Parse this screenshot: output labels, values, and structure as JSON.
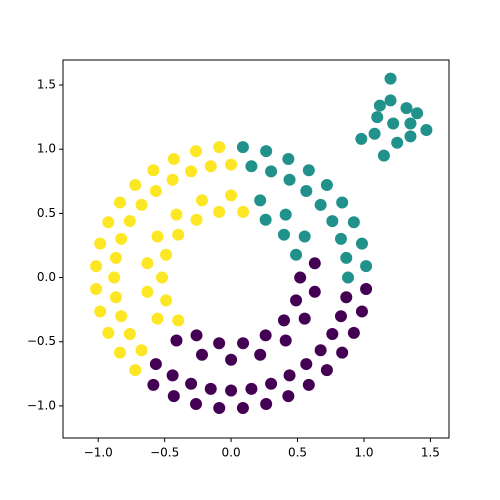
{
  "chart_data": {
    "type": "scatter",
    "xlim": [
      -1.265,
      1.64
    ],
    "ylim": [
      -1.25,
      1.695
    ],
    "xticks": [
      {
        "value": -1.0,
        "label": "−1.0"
      },
      {
        "value": -0.5,
        "label": "−0.5"
      },
      {
        "value": 0.0,
        "label": "0.0"
      },
      {
        "value": 0.5,
        "label": "0.5"
      },
      {
        "value": 1.0,
        "label": "1.0"
      },
      {
        "value": 1.5,
        "label": "1.5"
      }
    ],
    "yticks": [
      {
        "value": -1.0,
        "label": "−1.0"
      },
      {
        "value": -0.5,
        "label": "−0.5"
      },
      {
        "value": 0.0,
        "label": "0.0"
      },
      {
        "value": 0.5,
        "label": "0.5"
      },
      {
        "value": 1.0,
        "label": "1.0"
      },
      {
        "value": 1.5,
        "label": "1.5"
      }
    ],
    "grid": false,
    "series": [
      {
        "color": "#440154",
        "x": [
          -0.566,
          -0.44,
          -0.301,
          -0.153,
          0,
          0.153,
          0.301,
          0.44,
          0.566,
          0.674,
          0.762,
          0.827,
          0.867,
          -0.585,
          -0.431,
          -0.264,
          -0.089,
          0.089,
          0.264,
          0.431,
          0.585,
          0.721,
          0.836,
          0.924,
          0.985,
          1.016,
          -0.26,
          -0.09,
          0.09,
          0.26,
          0.398,
          0.489,
          0.52,
          -0.411,
          -0.219,
          0,
          0.219,
          0.411,
          0.554,
          0.63,
          0.63
        ],
        "values": [
          -0.674,
          -0.762,
          -0.827,
          -0.867,
          -0.88,
          -0.867,
          -0.827,
          -0.762,
          -0.674,
          -0.566,
          -0.44,
          -0.301,
          -0.153,
          -0.836,
          -0.924,
          -0.985,
          -1.016,
          -1.016,
          -0.985,
          -0.924,
          -0.836,
          -0.721,
          -0.585,
          -0.431,
          -0.264,
          -0.089,
          -0.45,
          -0.512,
          -0.512,
          -0.45,
          -0.334,
          -0.178,
          0,
          -0.49,
          -0.601,
          -0.64,
          -0.601,
          -0.49,
          -0.32,
          -0.111,
          0.111
        ]
      },
      {
        "color": "#21918c",
        "x": [
          0.88,
          0.867,
          0.827,
          0.762,
          0.674,
          0.566,
          0.44,
          0.301,
          0.153,
          1.016,
          0.985,
          0.924,
          0.836,
          0.721,
          0.585,
          0.431,
          0.264,
          0.089,
          0.489,
          0.398,
          0.26,
          0.554,
          0.411,
          0.219,
          1.22,
          1.1,
          1.35,
          1.2,
          1.25,
          1.08,
          1.35,
          1.32,
          1.12,
          1.2,
          1.47,
          0.98,
          1.15,
          1.4
        ],
        "values": [
          0,
          0.153,
          0.301,
          0.44,
          0.566,
          0.674,
          0.762,
          0.827,
          0.867,
          0.089,
          0.264,
          0.431,
          0.585,
          0.721,
          0.836,
          0.924,
          0.985,
          1.016,
          0.178,
          0.334,
          0.45,
          0.32,
          0.49,
          0.601,
          1.2,
          1.25,
          1.2,
          1.38,
          1.05,
          1.12,
          1.1,
          1.32,
          1.34,
          1.55,
          1.15,
          1.08,
          0.95,
          1.28
        ]
      },
      {
        "color": "#fde725",
        "x": [
          0,
          -0.153,
          -0.301,
          -0.44,
          -0.566,
          -0.674,
          -0.762,
          -0.827,
          -0.867,
          -0.88,
          -0.867,
          -0.827,
          -0.762,
          -0.674,
          -0.089,
          -0.264,
          -0.431,
          -0.585,
          -0.721,
          -0.836,
          -0.924,
          -0.985,
          -1.016,
          -1.016,
          -0.985,
          -0.924,
          -0.836,
          -0.721,
          0.09,
          -0.09,
          -0.26,
          -0.398,
          -0.489,
          -0.52,
          -0.489,
          -0.398,
          0,
          -0.219,
          -0.411,
          -0.554,
          -0.63,
          -0.63,
          -0.554
        ],
        "values": [
          0.88,
          0.867,
          0.827,
          0.762,
          0.674,
          0.566,
          0.44,
          0.301,
          0.153,
          0,
          -0.153,
          -0.301,
          -0.44,
          -0.566,
          1.016,
          0.985,
          0.924,
          0.836,
          0.721,
          0.585,
          0.431,
          0.264,
          0.089,
          -0.089,
          -0.264,
          -0.431,
          -0.585,
          -0.721,
          0.512,
          0.512,
          0.45,
          0.334,
          0.178,
          0,
          -0.178,
          -0.334,
          0.64,
          0.601,
          0.49,
          0.32,
          0.111,
          -0.111,
          -0.32
        ]
      }
    ]
  }
}
